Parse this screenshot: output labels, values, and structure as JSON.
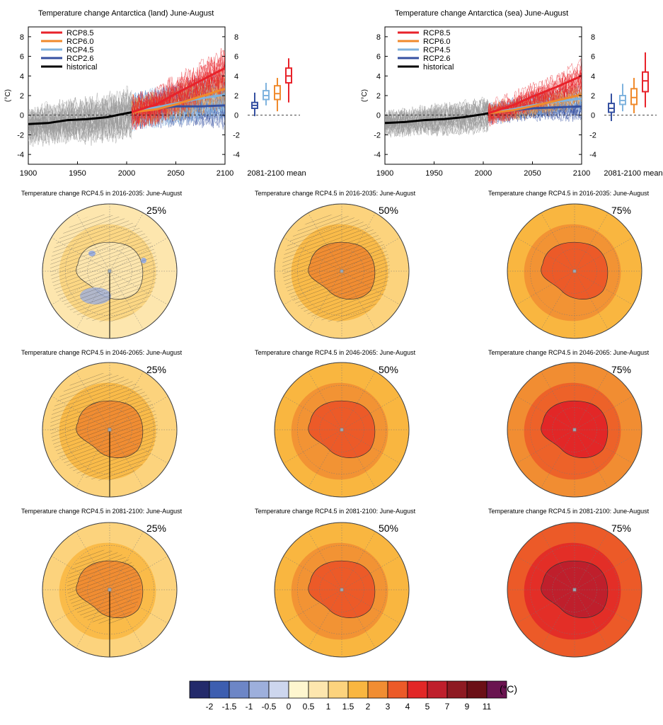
{
  "colors": {
    "RCP8.5": "#e8222a",
    "RCP6.0": "#f08a2c",
    "RCP4.5": "#7fb3de",
    "RCP2.6": "#3550a1",
    "historical": "#000000",
    "scale": [
      "#232a6b",
      "#3d5eb0",
      "#6d86c6",
      "#9dafdc",
      "#cdd6ee",
      "#fef6cf",
      "#fde6ae",
      "#fcd37d",
      "#f9b640",
      "#f18d32",
      "#ec5a28",
      "#e22727",
      "#bf1f2c",
      "#8e1a22",
      "#6b0f16",
      "#6a1450"
    ]
  },
  "chart_data": [
    {
      "type": "line",
      "title": "Temperature change Antarctica (land) June-August",
      "ylabel": "(°C)",
      "xlim": [
        1900,
        2100
      ],
      "ylim": [
        -5,
        9
      ],
      "x_ticks": [
        "1900",
        "1950",
        "2000",
        "2050",
        "2100"
      ],
      "y_ticks": [
        "-4",
        "-2",
        "0",
        "2",
        "4",
        "6",
        "8"
      ],
      "legend": [
        "RCP8.5",
        "RCP6.0",
        "RCP4.5",
        "RCP2.6",
        "historical"
      ],
      "legend_position": "top-left",
      "series": [
        {
          "name": "historical",
          "x": [
            1900,
            1920,
            1940,
            1960,
            1980,
            2000,
            2005
          ],
          "values": [
            -0.9,
            -0.8,
            -0.5,
            -0.4,
            -0.2,
            0.2,
            0.3
          ]
        },
        {
          "name": "RCP2.6",
          "x": [
            2005,
            2030,
            2050,
            2075,
            2100
          ],
          "values": [
            0.3,
            0.7,
            0.9,
            0.9,
            1.0
          ]
        },
        {
          "name": "RCP4.5",
          "x": [
            2005,
            2030,
            2050,
            2075,
            2100
          ],
          "values": [
            0.3,
            0.8,
            1.2,
            1.7,
            2.1
          ]
        },
        {
          "name": "RCP6.0",
          "x": [
            2005,
            2030,
            2050,
            2075,
            2100
          ],
          "values": [
            0.3,
            0.6,
            1.1,
            1.9,
            2.7
          ]
        },
        {
          "name": "RCP8.5",
          "x": [
            2005,
            2030,
            2050,
            2075,
            2100
          ],
          "values": [
            0.3,
            1.1,
            2.2,
            3.5,
            4.8
          ]
        }
      ],
      "boxplots": {
        "label": "2081-2100 mean",
        "items": [
          {
            "name": "RCP2.6",
            "whisker": [
              -0.1,
              2.3
            ],
            "box": [
              0.7,
              1.3
            ],
            "median": 1.0
          },
          {
            "name": "RCP4.5",
            "whisker": [
              1.0,
              3.3
            ],
            "box": [
              1.6,
              2.5
            ],
            "median": 2.0
          },
          {
            "name": "RCP6.0",
            "whisker": [
              0.4,
              3.8
            ],
            "box": [
              1.6,
              3.0
            ],
            "median": 2.2
          },
          {
            "name": "RCP8.5",
            "whisker": [
              1.3,
              5.8
            ],
            "box": [
              3.3,
              4.8
            ],
            "median": 4.0
          }
        ]
      }
    },
    {
      "type": "line",
      "title": "Temperature change Antarctica (sea) June-August",
      "ylabel": "(°C)",
      "xlim": [
        1900,
        2100
      ],
      "ylim": [
        -5,
        9
      ],
      "x_ticks": [
        "1900",
        "1950",
        "2000",
        "2050",
        "2100"
      ],
      "y_ticks": [
        "-4",
        "-2",
        "0",
        "2",
        "4",
        "6",
        "8"
      ],
      "legend": [
        "RCP8.5",
        "RCP6.0",
        "RCP4.5",
        "RCP2.6",
        "historical"
      ],
      "legend_position": "top-left",
      "series": [
        {
          "name": "historical",
          "x": [
            1900,
            1920,
            1940,
            1960,
            1980,
            2000,
            2005
          ],
          "values": [
            -0.8,
            -0.7,
            -0.5,
            -0.4,
            -0.2,
            0.1,
            0.2
          ]
        },
        {
          "name": "RCP2.6",
          "x": [
            2005,
            2030,
            2050,
            2075,
            2100
          ],
          "values": [
            0.2,
            0.5,
            0.7,
            0.8,
            0.9
          ]
        },
        {
          "name": "RCP4.5",
          "x": [
            2005,
            2030,
            2050,
            2075,
            2100
          ],
          "values": [
            0.2,
            0.6,
            1.0,
            1.4,
            1.7
          ]
        },
        {
          "name": "RCP6.0",
          "x": [
            2005,
            2030,
            2050,
            2075,
            2100
          ],
          "values": [
            0.2,
            0.5,
            0.9,
            1.5,
            2.1
          ]
        },
        {
          "name": "RCP8.5",
          "x": [
            2005,
            2030,
            2050,
            2075,
            2100
          ],
          "values": [
            0.2,
            1.0,
            1.9,
            2.9,
            4.0
          ]
        }
      ],
      "boxplots": {
        "label": "2081-2100 mean",
        "items": [
          {
            "name": "RCP2.6",
            "whisker": [
              -0.6,
              2.2
            ],
            "box": [
              0.3,
              1.2
            ],
            "median": 0.7
          },
          {
            "name": "RCP4.5",
            "whisker": [
              0.4,
              3.2
            ],
            "box": [
              1.1,
              2.0
            ],
            "median": 1.5
          },
          {
            "name": "RCP6.0",
            "whisker": [
              0.2,
              3.8
            ],
            "box": [
              1.1,
              2.7
            ],
            "median": 1.8
          },
          {
            "name": "RCP8.5",
            "whisker": [
              0.8,
              6.4
            ],
            "box": [
              2.4,
              4.4
            ],
            "median": 3.5
          }
        ]
      }
    },
    {
      "type": "heatmap",
      "description_rows": [
        {
          "period_title": "Temperature change RCP4.5 in 2016-2035: June-August",
          "percentiles": [
            "25%",
            "50%",
            "75%"
          ],
          "levels": [
            1,
            2,
            3
          ]
        },
        {
          "period_title": "Temperature change RCP4.5 in 2046-2065: June-August",
          "percentiles": [
            "25%",
            "50%",
            "75%"
          ],
          "levels": [
            2,
            3,
            4
          ]
        },
        {
          "period_title": "Temperature change RCP4.5 in 2081-2100: June-August",
          "percentiles": [
            "25%",
            "50%",
            "75%"
          ],
          "levels": [
            2,
            3,
            5
          ]
        }
      ],
      "colorbar": {
        "unit": "(°C)",
        "labels": [
          "-2",
          "-1.5",
          "-1",
          "-0.5",
          "0",
          "0.5",
          "1",
          "1.5",
          "2",
          "3",
          "4",
          "5",
          "7",
          "9",
          "11"
        ]
      }
    }
  ]
}
